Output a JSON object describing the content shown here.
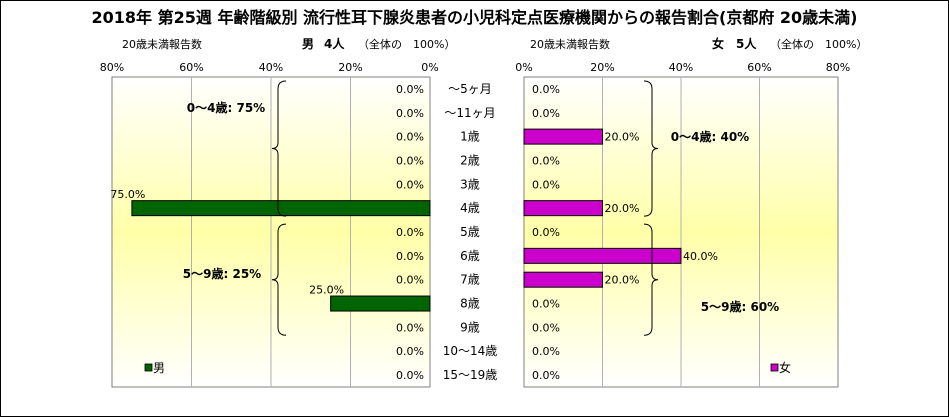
{
  "chart_data": {
    "type": "bar",
    "title": "2018年 第25週 年齢階級別 流行性耳下腺炎患者の小児科定点医療機関からの報告割合(京都府 20歳未満)",
    "categories": [
      "～5ヶ月",
      "～11ヶ月",
      "1歳",
      "2歳",
      "3歳",
      "4歳",
      "5歳",
      "6歳",
      "7歳",
      "8歳",
      "9歳",
      "10～14歳",
      "15～19歳"
    ],
    "axis_label": "20歳未満報告数",
    "xlim": [
      0,
      80
    ],
    "ticks": [
      "0%",
      "20%",
      "40%",
      "60%",
      "80%"
    ],
    "series": [
      {
        "name": "男",
        "summary_sex": "男",
        "summary_count": "4人",
        "summary_total": "（全体の　100%）",
        "color": "#006400",
        "values": [
          0.0,
          0.0,
          0.0,
          0.0,
          0.0,
          75.0,
          0.0,
          0.0,
          0.0,
          25.0,
          0.0,
          0.0,
          0.0
        ],
        "labels": [
          "0.0%",
          "0.0%",
          "0.0%",
          "0.0%",
          "0.0%",
          "75.0%",
          "0.0%",
          "0.0%",
          "0.0%",
          "25.0%",
          "0.0%",
          "0.0%",
          "0.0%"
        ],
        "groups": [
          {
            "label": "0～4歳: 75%",
            "from": 0,
            "to": 5
          },
          {
            "label": "5～9歳: 25%",
            "from": 6,
            "to": 10
          }
        ]
      },
      {
        "name": "女",
        "summary_sex": "女",
        "summary_count": "5人",
        "summary_total": "（全体の　100%）",
        "color": "#cc00cc",
        "values": [
          0.0,
          0.0,
          20.0,
          0.0,
          0.0,
          20.0,
          0.0,
          40.0,
          20.0,
          0.0,
          0.0,
          0.0,
          0.0
        ],
        "labels": [
          "0.0%",
          "0.0%",
          "20.0%",
          "0.0%",
          "0.0%",
          "20.0%",
          "0.0%",
          "40.0%",
          "20.0%",
          "0.0%",
          "0.0%",
          "0.0%",
          "0.0%"
        ],
        "groups": [
          {
            "label": "0～4歳: 40%",
            "from": 0,
            "to": 5
          },
          {
            "label": "5～9歳: 60%",
            "from": 6,
            "to": 10
          }
        ]
      }
    ]
  }
}
